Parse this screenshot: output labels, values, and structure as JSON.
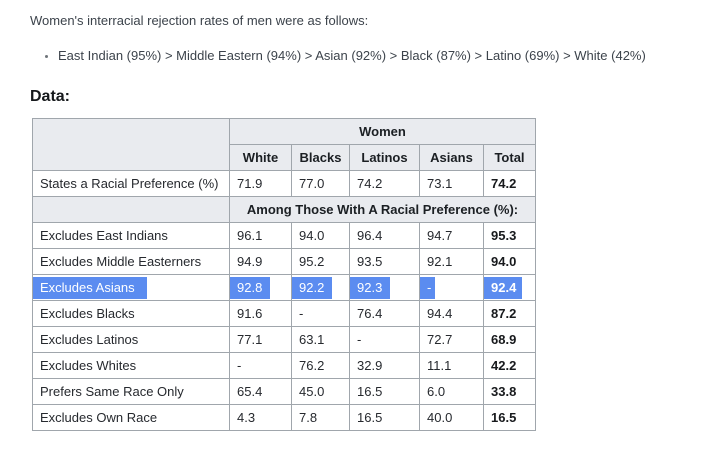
{
  "intro_text": "Women's interracial rejection rates of men were as follows:",
  "ranking_bullet": "East Indian (95%) > Middle Eastern (94%) > Asian (92%) > Black (87%) > Latino (69%) > White (42%)",
  "data_heading": "Data:",
  "table": {
    "group_header": "Women",
    "columns": [
      "White",
      "Blacks",
      "Latinos",
      "Asians",
      "Total"
    ],
    "pref_row": {
      "label": "States a Racial Preference (%)",
      "values": [
        "71.9",
        "77.0",
        "74.2",
        "73.1"
      ],
      "total": "74.2"
    },
    "section_header": "Among Those With A Racial Preference (%):",
    "rows": [
      {
        "label": "Excludes East Indians",
        "values": [
          "96.1",
          "94.0",
          "96.4",
          "94.7"
        ],
        "total": "95.3"
      },
      {
        "label": "Excludes Middle Easterners",
        "values": [
          "94.9",
          "95.2",
          "93.5",
          "92.1"
        ],
        "total": "94.0"
      },
      {
        "label": "Excludes Asians",
        "values": [
          "92.8",
          "92.2",
          "92.3",
          "-"
        ],
        "total": "92.4",
        "selected": true
      },
      {
        "label": "Excludes Blacks",
        "values": [
          "91.6",
          "-",
          "76.4",
          "94.4"
        ],
        "total": "87.2"
      },
      {
        "label": "Excludes Latinos",
        "values": [
          "77.1",
          "63.1",
          "-",
          "72.7"
        ],
        "total": "68.9"
      },
      {
        "label": "Excludes Whites",
        "values": [
          "-",
          "76.2",
          "32.9",
          "11.1"
        ],
        "total": "42.2"
      },
      {
        "label": "Prefers Same Race Only",
        "values": [
          "65.4",
          "45.0",
          "16.5",
          "6.0"
        ],
        "total": "33.8"
      },
      {
        "label": "Excludes Own Race",
        "values": [
          "4.3",
          "7.8",
          "16.5",
          "40.0"
        ],
        "total": "16.5"
      }
    ]
  },
  "colors": {
    "selection_highlight": "#5b8cf0",
    "selection_text": "#ffffff",
    "table_header_bg": "#e9ebef",
    "table_border": "#a0a6ac",
    "body_text": "#3c434b"
  }
}
